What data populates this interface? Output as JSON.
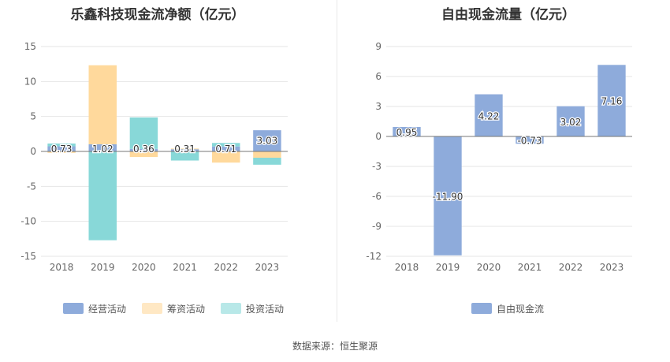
{
  "source_label": "数据来源：恒生聚源",
  "colors": {
    "operating": "#8eabdb",
    "financing": "#ffd99c",
    "investing": "#88d8d8",
    "free_cash_flow": "#8eabdb"
  },
  "chart_data": [
    {
      "type": "bar",
      "stacked": true,
      "title": "乐鑫科技现金流净额（亿元）",
      "categories": [
        "2018",
        "2019",
        "2020",
        "2021",
        "2022",
        "2023"
      ],
      "yticks": [
        15,
        10,
        5,
        0,
        -5,
        -10,
        -15
      ],
      "ylim": [
        -15,
        15
      ],
      "grid": true,
      "legend_position": "bottom",
      "series": [
        {
          "name": "经营活动",
          "values": [
            0.73,
            1.02,
            0.36,
            0.31,
            0.71,
            3.03
          ]
        },
        {
          "name": "筹资活动",
          "values": [
            -0.2,
            11.3,
            -0.8,
            0.1,
            -1.6,
            -0.9
          ]
        },
        {
          "name": "投资活动",
          "values": [
            0.4,
            -12.7,
            4.5,
            -1.3,
            0.5,
            -1.0
          ]
        }
      ],
      "data_labels": [
        "0.73",
        "1.02",
        "0.36",
        "0.31",
        "0.71",
        "3.03"
      ]
    },
    {
      "type": "bar",
      "title": "自由现金流量（亿元）",
      "categories": [
        "2018",
        "2019",
        "2020",
        "2021",
        "2022",
        "2023"
      ],
      "yticks": [
        9,
        6,
        3,
        0,
        -3,
        -6,
        -9,
        -12
      ],
      "ylim": [
        -12,
        9
      ],
      "grid": true,
      "legend_position": "bottom",
      "series": [
        {
          "name": "自由现金流",
          "values": [
            0.95,
            -11.9,
            4.22,
            -0.73,
            3.02,
            7.16
          ]
        }
      ],
      "data_labels": [
        "0.95",
        "-11.90",
        "4.22",
        "-0.73",
        "3.02",
        "7.16"
      ]
    }
  ]
}
